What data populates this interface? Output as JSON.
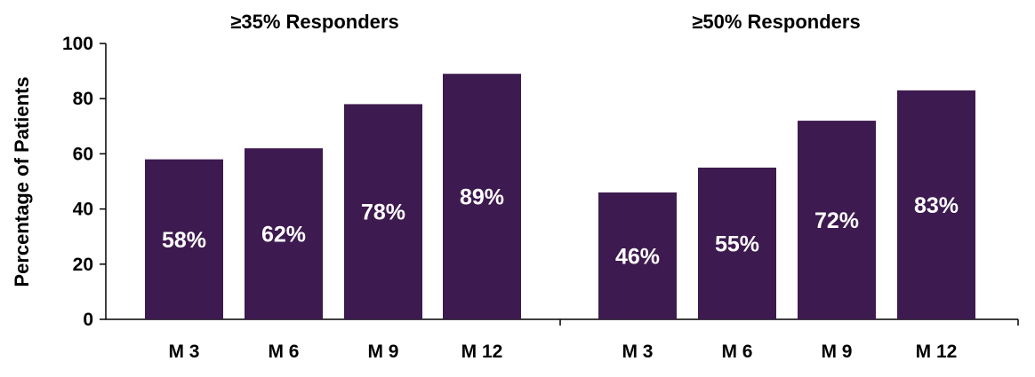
{
  "chart_data": {
    "type": "bar",
    "ylabel": "Percentage of Patients",
    "ylim": [
      0,
      100
    ],
    "yticks": [
      "0",
      "20",
      "40",
      "60",
      "80",
      "100"
    ],
    "grid": false,
    "bar_color": "#3d1a4f",
    "groups": [
      {
        "title": "≥35% Responders",
        "categories": [
          "M 3",
          "M 6",
          "M 9",
          "M 12"
        ],
        "values": [
          58,
          62,
          78,
          89
        ],
        "labels": [
          "58%",
          "62%",
          "78%",
          "89%"
        ]
      },
      {
        "title": "≥50% Responders",
        "categories": [
          "M 3",
          "M 6",
          "M 9",
          "M 12"
        ],
        "values": [
          46,
          55,
          72,
          83
        ],
        "labels": [
          "46%",
          "55%",
          "72%",
          "83%"
        ]
      }
    ]
  }
}
